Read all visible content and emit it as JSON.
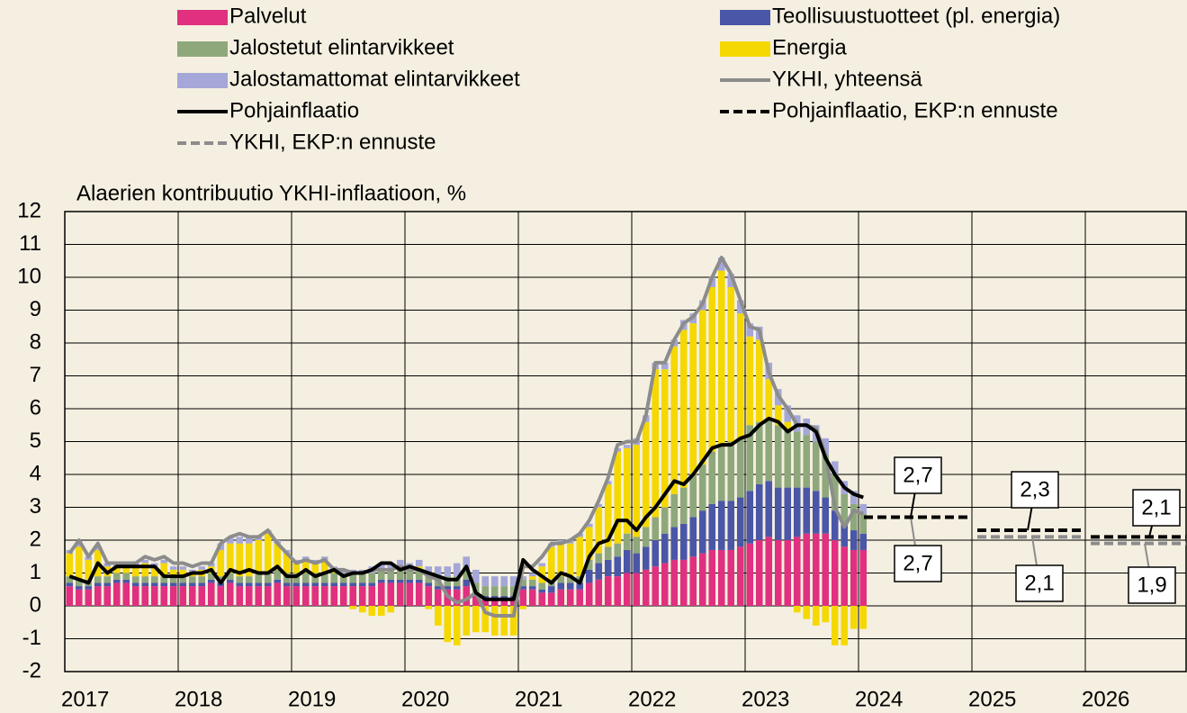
{
  "chart_data": {
    "type": "bar",
    "stacked": true,
    "title": "Alaerien kontribuutio YKHI-inflaatioon, %",
    "ylim": [
      -2,
      12
    ],
    "yticks": [
      -2,
      -1,
      0,
      1,
      2,
      3,
      4,
      5,
      6,
      7,
      8,
      9,
      10,
      11,
      12
    ],
    "grid": true,
    "categories": [
      "2017",
      null,
      null,
      null,
      null,
      null,
      null,
      null,
      null,
      null,
      null,
      null,
      "2018",
      null,
      null,
      null,
      null,
      null,
      null,
      null,
      null,
      null,
      null,
      null,
      "2019",
      null,
      null,
      null,
      null,
      null,
      null,
      null,
      null,
      null,
      null,
      null,
      "2020",
      null,
      null,
      null,
      null,
      null,
      null,
      null,
      null,
      null,
      null,
      null,
      "2021",
      null,
      null,
      null,
      null,
      null,
      null,
      null,
      null,
      null,
      null,
      null,
      "2022",
      null,
      null,
      null,
      null,
      null,
      null,
      null,
      null,
      null,
      null,
      null,
      "2023",
      null,
      null,
      null,
      null,
      null,
      null,
      null,
      null,
      null,
      null,
      null,
      null
    ],
    "series": [
      {
        "name": "Palvelut",
        "color": "#e0307f",
        "values": [
          0.6,
          0.5,
          0.5,
          0.6,
          0.6,
          0.7,
          0.7,
          0.6,
          0.6,
          0.6,
          0.6,
          0.6,
          0.6,
          0.6,
          0.6,
          0.7,
          0.6,
          0.7,
          0.6,
          0.6,
          0.6,
          0.6,
          0.7,
          0.6,
          0.6,
          0.6,
          0.6,
          0.6,
          0.6,
          0.6,
          0.6,
          0.6,
          0.6,
          0.7,
          0.7,
          0.7,
          0.7,
          0.7,
          0.6,
          0.5,
          0.5,
          0.5,
          0.6,
          0.3,
          0.2,
          0.2,
          0.2,
          0.2,
          0.5,
          0.5,
          0.4,
          0.4,
          0.5,
          0.5,
          0.5,
          0.7,
          0.8,
          0.9,
          0.9,
          1.0,
          1.0,
          1.1,
          1.2,
          1.3,
          1.4,
          1.4,
          1.5,
          1.6,
          1.7,
          1.7,
          1.7,
          1.8,
          1.9,
          2.0,
          2.1,
          2.0,
          2.0,
          2.1,
          2.2,
          2.2,
          2.2,
          2.0,
          1.8,
          1.7,
          1.7
        ]
      },
      {
        "name": "Teollisuustuotteet (pl. energia)",
        "color": "#4a56a8",
        "values": [
          0.1,
          0.1,
          0.1,
          0.1,
          0.1,
          0.1,
          0.1,
          0.1,
          0.1,
          0.1,
          0.1,
          0.1,
          0.1,
          0.1,
          0.1,
          0.1,
          0.1,
          0.1,
          0.1,
          0.1,
          0.1,
          0.1,
          0.1,
          0.1,
          0.1,
          0.1,
          0.1,
          0.1,
          0.1,
          0.1,
          0.1,
          0.1,
          0.1,
          0.1,
          0.1,
          0.1,
          0.1,
          0.1,
          0.1,
          0.1,
          0.1,
          0.1,
          0.2,
          0.1,
          0.1,
          0.1,
          0.1,
          0.1,
          0.1,
          0.1,
          0.1,
          0.2,
          0.2,
          0.2,
          0.2,
          0.4,
          0.5,
          0.5,
          0.6,
          0.7,
          0.6,
          0.7,
          0.8,
          0.9,
          1.0,
          1.1,
          1.2,
          1.3,
          1.4,
          1.5,
          1.5,
          1.5,
          1.6,
          1.7,
          1.7,
          1.6,
          1.6,
          1.5,
          1.4,
          1.3,
          1.1,
          0.9,
          0.7,
          0.6,
          0.5
        ]
      },
      {
        "name": "Jalostetut elintarvikkeet",
        "color": "#8ea87c",
        "values": [
          0.2,
          0.2,
          0.2,
          0.2,
          0.2,
          0.2,
          0.2,
          0.2,
          0.2,
          0.2,
          0.2,
          0.2,
          0.2,
          0.2,
          0.2,
          0.2,
          0.2,
          0.2,
          0.2,
          0.2,
          0.3,
          0.3,
          0.3,
          0.3,
          0.3,
          0.3,
          0.3,
          0.3,
          0.3,
          0.3,
          0.3,
          0.3,
          0.3,
          0.3,
          0.3,
          0.3,
          0.3,
          0.3,
          0.3,
          0.3,
          0.3,
          0.3,
          0.3,
          0.3,
          0.3,
          0.3,
          0.3,
          0.3,
          0.2,
          0.2,
          0.2,
          0.2,
          0.2,
          0.2,
          0.2,
          0.3,
          0.3,
          0.4,
          0.4,
          0.5,
          0.5,
          0.6,
          0.7,
          0.8,
          1.0,
          1.1,
          1.3,
          1.4,
          1.6,
          1.7,
          1.8,
          1.8,
          2.0,
          1.9,
          1.9,
          1.9,
          1.8,
          1.7,
          1.6,
          1.5,
          1.3,
          1.1,
          0.9,
          0.8,
          0.6
        ]
      },
      {
        "name": "Energia",
        "color": "#f5d800",
        "values": [
          0.7,
          1.0,
          0.6,
          0.8,
          0.3,
          0.2,
          0.2,
          0.3,
          0.4,
          0.3,
          0.4,
          0.2,
          0.2,
          0.1,
          0.2,
          0.2,
          0.8,
          0.9,
          1.0,
          1.0,
          1.0,
          1.2,
          0.8,
          0.6,
          0.3,
          0.4,
          0.3,
          0.4,
          0.1,
          0.0,
          -0.1,
          -0.2,
          -0.3,
          -0.3,
          -0.2,
          0.1,
          0.0,
          0.1,
          -0.1,
          -0.6,
          -1.1,
          -1.2,
          -0.9,
          -0.8,
          -0.8,
          -0.9,
          -0.9,
          -0.9,
          -0.1,
          0.1,
          0.5,
          1.0,
          1.0,
          1.0,
          1.2,
          1.0,
          1.4,
          1.9,
          2.8,
          2.6,
          2.8,
          3.2,
          4.5,
          4.2,
          4.5,
          4.8,
          4.6,
          4.7,
          5.0,
          5.3,
          4.7,
          3.8,
          2.7,
          2.5,
          1.2,
          0.6,
          0.2,
          -0.2,
          -0.4,
          -0.6,
          -0.5,
          -1.2,
          -1.2,
          -0.7,
          -0.7
        ]
      },
      {
        "name": "Jalostamattomat elintarvikkeet",
        "color": "#a5a7d8",
        "values": [
          0.1,
          0.1,
          0.1,
          0.1,
          0.1,
          0.1,
          0.1,
          0.1,
          0.1,
          0.1,
          0.1,
          0.1,
          0.1,
          0.1,
          0.1,
          0.1,
          0.2,
          0.2,
          0.2,
          0.2,
          0.1,
          0.1,
          0.1,
          0.1,
          0.1,
          0.1,
          0.1,
          0.1,
          0.1,
          0.1,
          0.1,
          0.1,
          0.2,
          0.2,
          0.2,
          0.2,
          0.2,
          0.2,
          0.2,
          0.3,
          0.3,
          0.4,
          0.4,
          0.4,
          0.3,
          0.3,
          0.3,
          0.3,
          0.1,
          0.1,
          0.1,
          0.1,
          0.1,
          0.1,
          0.1,
          0.1,
          0.1,
          0.1,
          0.1,
          0.1,
          0.2,
          0.2,
          0.2,
          0.2,
          0.2,
          0.3,
          0.3,
          0.3,
          0.3,
          0.4,
          0.4,
          0.4,
          0.4,
          0.4,
          0.5,
          0.5,
          0.5,
          0.5,
          0.5,
          0.5,
          0.5,
          0.4,
          0.4,
          0.4,
          0.3
        ]
      },
      {
        "name": "YKHI, yhteensä",
        "color": "#8c8c8c",
        "type": "line",
        "values": [
          1.6,
          2.0,
          1.5,
          1.9,
          1.3,
          1.3,
          1.3,
          1.3,
          1.5,
          1.4,
          1.5,
          1.3,
          1.3,
          1.2,
          1.3,
          1.3,
          1.9,
          2.1,
          2.2,
          2.1,
          2.1,
          2.3,
          1.9,
          1.6,
          1.3,
          1.4,
          1.3,
          1.4,
          1.1,
          1.1,
          1.0,
          1.0,
          1.1,
          1.1,
          1.1,
          1.2,
          1.1,
          1.1,
          0.9,
          0.8,
          0.3,
          0.1,
          0.2,
          0.4,
          -0.2,
          -0.3,
          -0.3,
          -0.3,
          1.2,
          1.2,
          1.5,
          1.9,
          1.9,
          2.0,
          2.2,
          2.6,
          3.2,
          3.9,
          4.9,
          5.0,
          5.0,
          5.8,
          7.4,
          7.4,
          8.1,
          8.6,
          8.8,
          9.2,
          10.0,
          10.6,
          10.1,
          9.3,
          8.5,
          8.4,
          7.1,
          6.4,
          6.0,
          5.5,
          5.5,
          5.4,
          4.6,
          3.0,
          2.4,
          2.9,
          2.8
        ]
      },
      {
        "name": "Pohjainflaatio",
        "color": "#000000",
        "type": "line",
        "values": [
          0.9,
          0.8,
          0.7,
          1.3,
          1.0,
          1.2,
          1.2,
          1.2,
          1.2,
          1.2,
          0.9,
          0.9,
          0.9,
          1.0,
          1.0,
          1.1,
          0.7,
          1.1,
          1.0,
          1.1,
          1.0,
          1.0,
          1.2,
          0.9,
          0.9,
          1.1,
          0.9,
          1.0,
          1.1,
          0.9,
          1.0,
          1.0,
          1.1,
          1.3,
          1.3,
          1.1,
          1.2,
          1.1,
          1.0,
          0.9,
          0.8,
          0.8,
          1.2,
          0.4,
          0.2,
          0.2,
          0.2,
          0.2,
          1.4,
          1.1,
          0.9,
          0.7,
          1.0,
          0.9,
          0.7,
          1.5,
          1.9,
          2.0,
          2.6,
          2.6,
          2.3,
          2.7,
          3.0,
          3.4,
          3.8,
          3.7,
          4.0,
          4.4,
          4.8,
          4.9,
          4.9,
          5.1,
          5.2,
          5.5,
          5.7,
          5.6,
          5.3,
          5.5,
          5.5,
          5.3,
          4.5,
          4.0,
          3.6,
          3.4,
          3.3
        ]
      }
    ],
    "forecast": {
      "x": [
        2024,
        2025,
        2026
      ],
      "series": [
        {
          "name": "YKHI, EKP:n ennuste",
          "color": "#8c8c8c",
          "values": [
            2.7,
            2.1,
            1.9
          ],
          "value_labels": [
            "2,7",
            "2,1",
            "1,9"
          ]
        },
        {
          "name": "Pohjainflaatio, EKP:n ennuste",
          "color": "#000000",
          "values": [
            2.7,
            2.3,
            2.1
          ],
          "value_labels": [
            "2,7",
            "2,3",
            "2,1"
          ]
        }
      ]
    }
  }
}
